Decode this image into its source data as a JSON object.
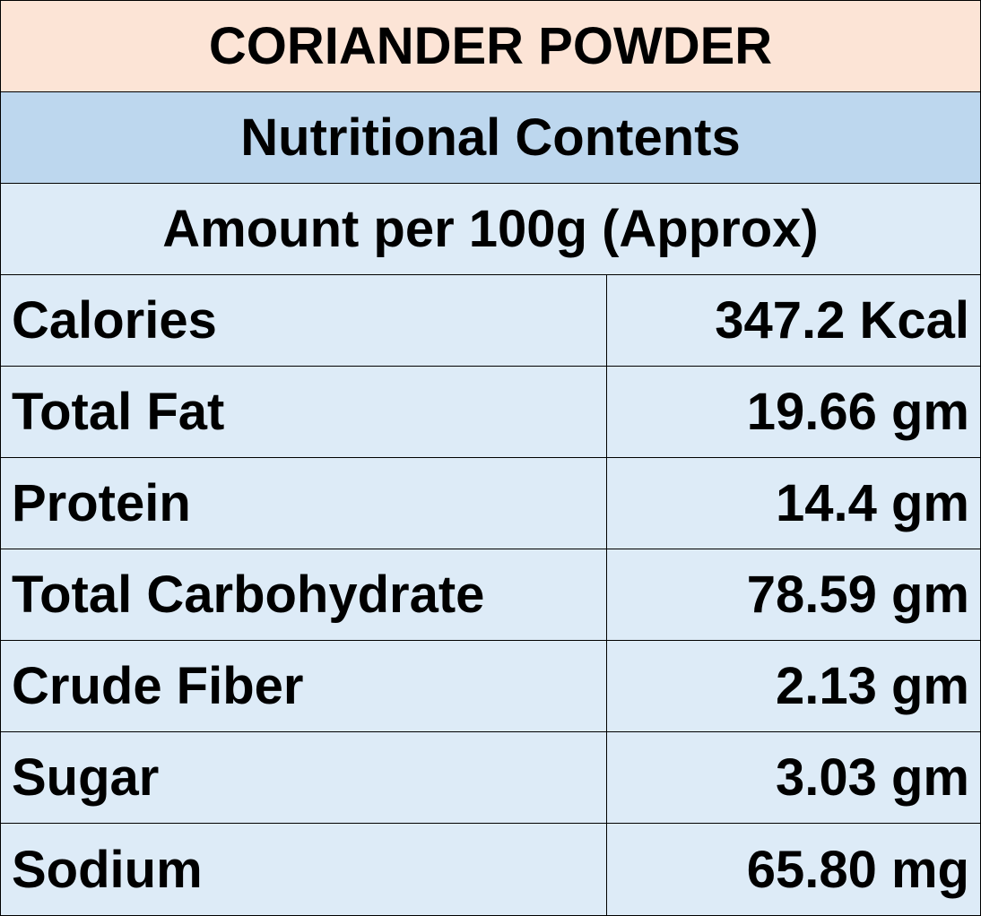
{
  "header": {
    "title": "CORIANDER POWDER",
    "subtitle": "Nutritional Contents",
    "note": "Amount per 100g (Approx)"
  },
  "table": {
    "rows": [
      [
        "Calories",
        "347.2 Kcal"
      ],
      [
        "Total Fat",
        "19.66 gm"
      ],
      [
        "Protein",
        "14.4 gm"
      ],
      [
        "Total Carbohydrate",
        "78.59 gm"
      ],
      [
        "Crude Fiber",
        "2.13 gm"
      ],
      [
        "Sugar",
        "3.03 gm"
      ],
      [
        "Sodium",
        "65.80 mg"
      ]
    ]
  }
}
